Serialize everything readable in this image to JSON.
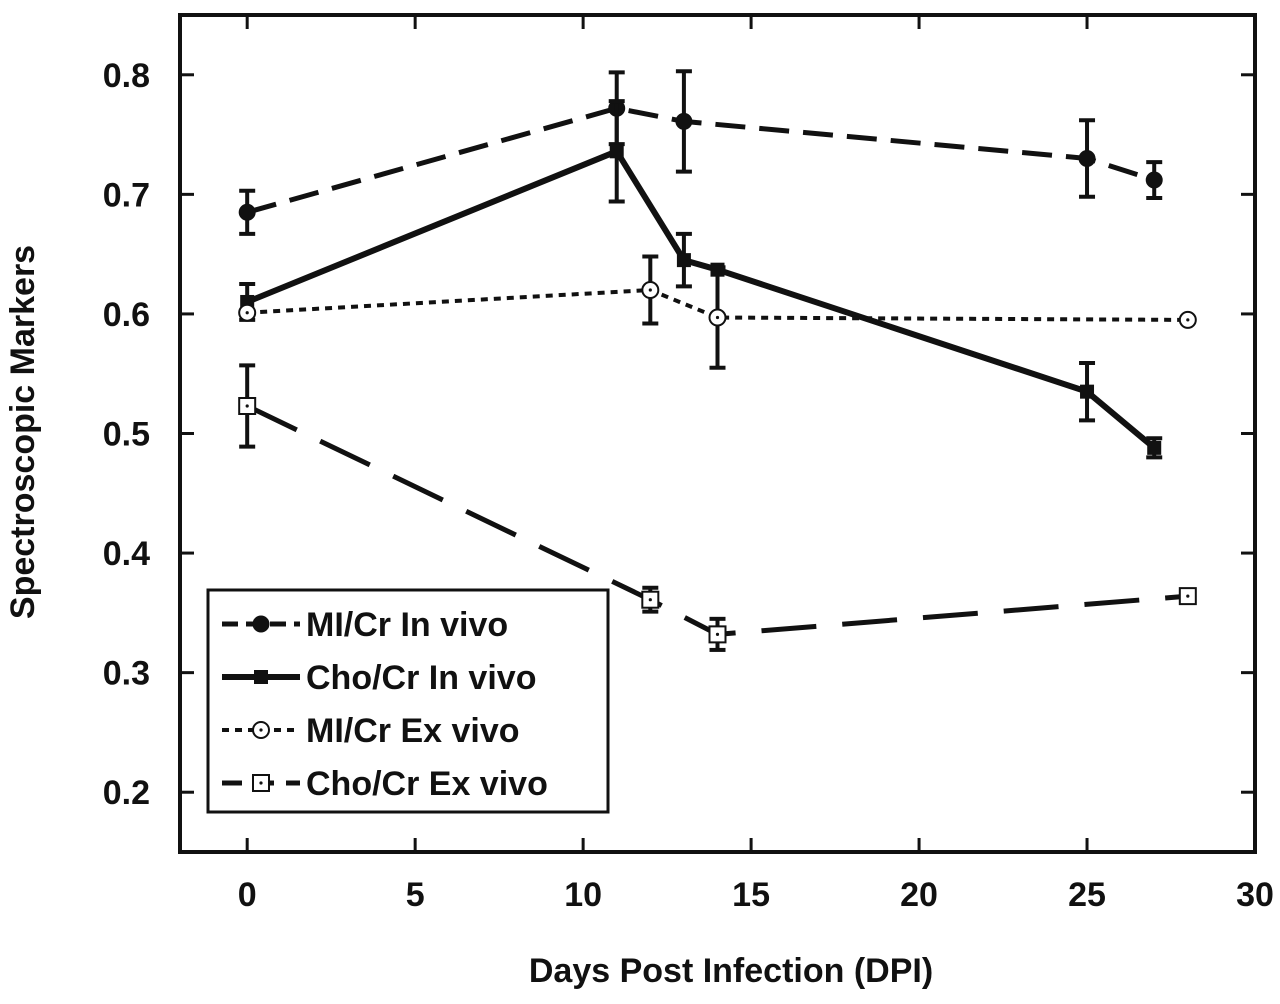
{
  "chart_data": {
    "type": "line",
    "xlabel": "Days Post Infection (DPI)",
    "ylabel": "Spectroscopic Markers",
    "xlim": [
      -2,
      30
    ],
    "ylim": [
      0.15,
      0.85
    ],
    "xticks": [
      0,
      5,
      10,
      15,
      20,
      25,
      30
    ],
    "xtick_labels": [
      "0",
      "5",
      "10",
      "15",
      "20",
      "25",
      "30"
    ],
    "yticks": [
      0.2,
      0.3,
      0.4,
      0.5,
      0.6,
      0.7,
      0.8
    ],
    "ytick_labels": [
      "0.2",
      "0.3",
      "0.4",
      "0.5",
      "0.6",
      "0.7",
      "0.8"
    ],
    "grid": false,
    "legend_position": "bottom-left",
    "series": [
      {
        "name": "MI/Cr In vivo",
        "line_style": "dashed",
        "marker": "filled-circle",
        "x": [
          0,
          11,
          13,
          25,
          27
        ],
        "y": [
          0.685,
          0.772,
          0.761,
          0.73,
          0.712
        ],
        "err": [
          0.018,
          0.03,
          0.042,
          0.032,
          0.015
        ]
      },
      {
        "name": "Cho/Cr In vivo",
        "line_style": "solid",
        "marker": "filled-square",
        "x": [
          0,
          11,
          13,
          14,
          25,
          27
        ],
        "y": [
          0.61,
          0.736,
          0.645,
          0.637,
          0.535,
          0.488
        ],
        "err": [
          0.015,
          0.042,
          0.022,
          0.0,
          0.024,
          0.008
        ]
      },
      {
        "name": "MI/Cr Ex vivo",
        "line_style": "dotted",
        "marker": "open-circle",
        "x": [
          0,
          12,
          14,
          28
        ],
        "y": [
          0.601,
          0.62,
          0.597,
          0.595
        ],
        "err": [
          0.0,
          0.028,
          0.042,
          0.0
        ]
      },
      {
        "name": "Cho/Cr Ex vivo",
        "line_style": "long-dashed",
        "marker": "open-square",
        "x": [
          0,
          12,
          14,
          28
        ],
        "y": [
          0.523,
          0.361,
          0.332,
          0.364
        ],
        "err": [
          0.034,
          0.01,
          0.013,
          0.0
        ]
      }
    ]
  }
}
